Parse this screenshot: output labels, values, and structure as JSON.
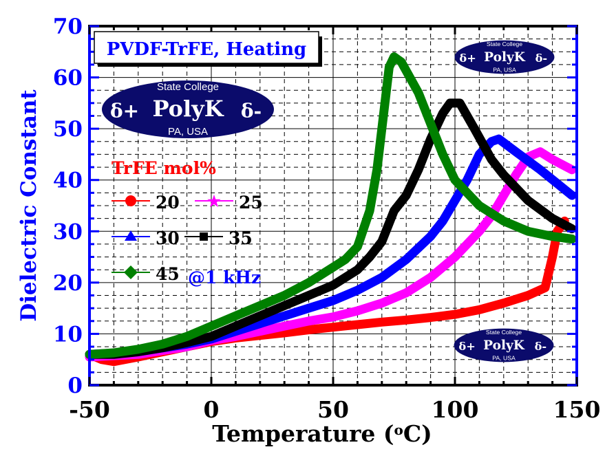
{
  "chart_data": {
    "type": "line",
    "title": "PVDF-TrFE, Heating",
    "xlabel": "Temperature (oC)",
    "ylabel": "Dielectric Constant",
    "xlim": [
      -50,
      150
    ],
    "ylim": [
      0,
      70
    ],
    "xticks": [
      -50,
      0,
      50,
      100,
      150
    ],
    "yticks": [
      0,
      10,
      20,
      30,
      40,
      50,
      60,
      70
    ],
    "grid": true,
    "legend_title": "TrFE mol%",
    "legend_note": "@1 kHz",
    "legend_placement": "left",
    "series": [
      {
        "name": "20",
        "color": "#ff0000",
        "marker": "circle",
        "x": [
          -50,
          -45,
          -40,
          -30,
          -20,
          -10,
          0,
          10,
          20,
          30,
          40,
          50,
          60,
          70,
          80,
          90,
          100,
          110,
          120,
          130,
          137,
          140,
          142,
          145
        ],
        "y": [
          6,
          5,
          4.6,
          5.5,
          6.5,
          7.5,
          8.5,
          9.2,
          9.7,
          10.2,
          10.8,
          11.3,
          11.8,
          12.3,
          12.7,
          13.2,
          13.8,
          14.7,
          16,
          17.5,
          19,
          25,
          30,
          32
        ]
      },
      {
        "name": "25",
        "color": "#ff00ff",
        "marker": "star",
        "x": [
          -50,
          -30,
          -10,
          0,
          10,
          20,
          30,
          40,
          50,
          60,
          70,
          80,
          90,
          100,
          110,
          115,
          120,
          125,
          130,
          135,
          140,
          148
        ],
        "y": [
          5.5,
          6,
          7.5,
          8.7,
          9.5,
          10.5,
          11.5,
          12.5,
          13.3,
          14.5,
          16,
          18,
          21,
          25,
          30,
          33,
          37,
          41,
          44.5,
          45.5,
          44,
          42
        ]
      },
      {
        "name": "30",
        "color": "#0000ff",
        "marker": "triangle",
        "x": [
          -50,
          -30,
          -10,
          0,
          10,
          20,
          30,
          40,
          50,
          60,
          70,
          80,
          90,
          95,
          100,
          105,
          110,
          115,
          118,
          125,
          135,
          148
        ],
        "y": [
          6,
          6.5,
          8,
          9,
          10.5,
          12,
          13.5,
          15,
          16.5,
          18.5,
          21,
          24.5,
          29,
          32,
          36,
          40,
          45,
          47.5,
          48,
          45.5,
          42,
          37
        ]
      },
      {
        "name": "35",
        "color": "#000000",
        "marker": "square",
        "x": [
          -50,
          -40,
          -30,
          -20,
          -10,
          0,
          10,
          20,
          30,
          40,
          50,
          60,
          65,
          70,
          75,
          80,
          85,
          90,
          95,
          98,
          102,
          108,
          115,
          120,
          130,
          140,
          148
        ],
        "y": [
          6,
          6,
          6.5,
          7.3,
          8.3,
          9.5,
          11.5,
          13.5,
          15.5,
          17.5,
          19.5,
          22.5,
          25,
          28,
          34,
          37,
          42,
          48,
          53,
          55,
          55,
          50,
          44,
          41,
          36,
          32.5,
          30.5
        ]
      },
      {
        "name": "45",
        "color": "#008000",
        "marker": "diamond",
        "x": [
          -50,
          -40,
          -30,
          -20,
          -10,
          0,
          10,
          20,
          30,
          40,
          50,
          55,
          60,
          65,
          68,
          70,
          72,
          73,
          75,
          78,
          85,
          90,
          95,
          100,
          110,
          120,
          130,
          140,
          148
        ],
        "y": [
          6,
          6.3,
          7,
          8,
          9.5,
          11.5,
          13.5,
          15.5,
          17.5,
          20,
          23,
          24.5,
          27,
          34,
          42,
          50,
          58,
          62,
          64,
          63,
          57,
          51,
          45,
          40,
          35,
          32,
          30,
          29,
          28.5
        ]
      }
    ]
  },
  "logo": {
    "top": "State College",
    "name": "PolyK",
    "bottom": "PA, USA",
    "left_symbol": "δ+",
    "right_symbol": "δ-"
  }
}
